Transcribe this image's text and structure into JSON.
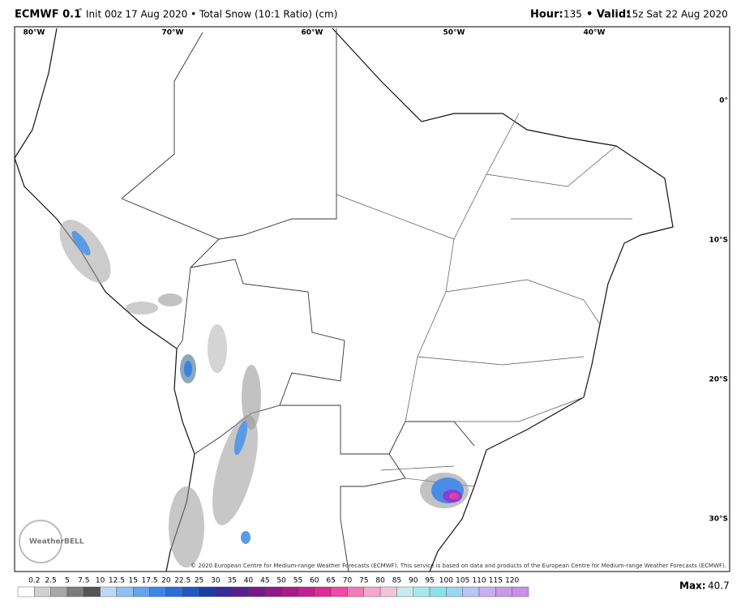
{
  "header": {
    "model": "ECMWF 0.1",
    "degree": "°",
    "init": "Init 00z 17 Aug 2020 • Total Snow (10:1 Ratio) (cm)",
    "hour_label": "Hour:",
    "hour": "135",
    "valid_label": "• Valid:",
    "valid": "15z Sat 22 Aug 2020"
  },
  "map": {
    "lon_labels": [
      "80°W",
      "70°W",
      "60°W",
      "50°W",
      "40°W"
    ],
    "lat_labels": [
      "0°",
      "10°S",
      "20°S",
      "30°S"
    ],
    "logo": "WeatherBELL",
    "copyright": "© 2020 European Centre for Medium-range Weather Forecasts (ECMWF). This service is based on data and products of the European Centre for Medium-range Weather Forecasts (ECMWF)."
  },
  "colorbar": {
    "labels": [
      0.2,
      2.5,
      5,
      7.5,
      10,
      12.5,
      15,
      17.5,
      20,
      22.5,
      25,
      30,
      35,
      40,
      45,
      50,
      55,
      60,
      65,
      70,
      75,
      80,
      85,
      90,
      95,
      100,
      105,
      110,
      115,
      120
    ]
  },
  "max": {
    "label": "Max:",
    "value": 40.7
  }
}
